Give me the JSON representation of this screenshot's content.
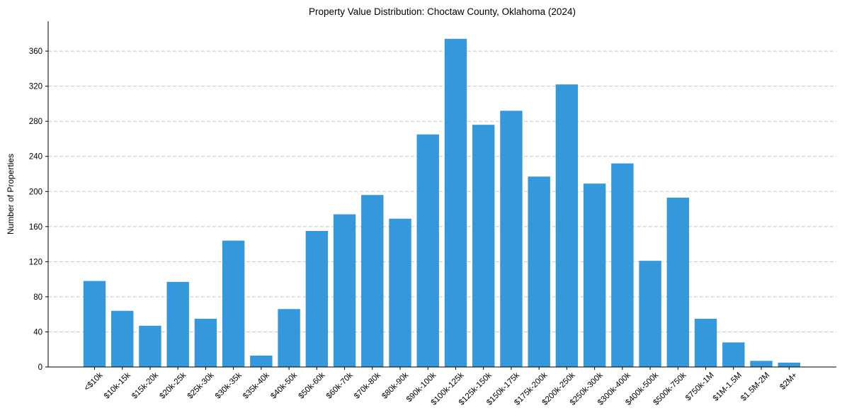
{
  "chart_data": {
    "type": "bar",
    "title": "Property Value Distribution: Choctaw County, Oklahoma (2024)",
    "xlabel": "",
    "ylabel": "Number of Properties",
    "ylim": [
      0,
      394
    ],
    "yticks": [
      0,
      40,
      80,
      120,
      160,
      200,
      240,
      280,
      320,
      360
    ],
    "grid": "y-dashed",
    "categories": [
      "<$10k",
      "$10k-15k",
      "$15k-20k",
      "$20k-25k",
      "$25k-30k",
      "$30k-35k",
      "$35k-40k",
      "$40k-50k",
      "$50k-60k",
      "$60k-70k",
      "$70k-80k",
      "$80k-90k",
      "$90k-100k",
      "$100k-125k",
      "$125k-150k",
      "$150k-175k",
      "$175k-200k",
      "$200k-250k",
      "$250k-300k",
      "$300k-400k",
      "$400k-500k",
      "$500k-750k",
      "$750k-1M",
      "$1M-1.5M",
      "$1.5M-2M",
      "$2M+"
    ],
    "values": [
      98,
      64,
      47,
      97,
      55,
      144,
      13,
      66,
      155,
      174,
      196,
      169,
      265,
      374,
      276,
      292,
      217,
      322,
      209,
      232,
      121,
      193,
      55,
      28,
      7,
      5
    ],
    "color": "#3498db"
  }
}
